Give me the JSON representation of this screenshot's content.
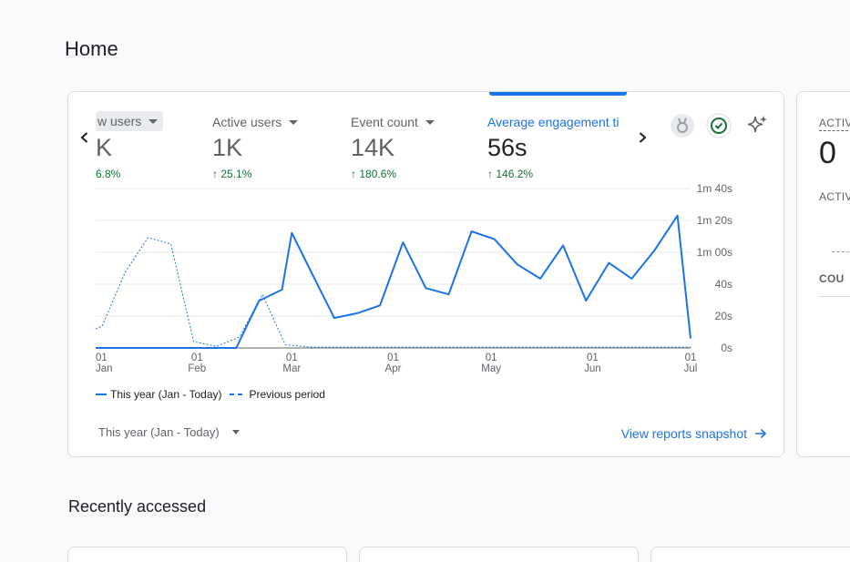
{
  "page": {
    "title": "Home"
  },
  "metrics": [
    {
      "label": "w users",
      "value": "K",
      "change": "6.8%"
    },
    {
      "label": "Active users",
      "value": "1K",
      "change": "25.1%"
    },
    {
      "label": "Event count",
      "value": "14K",
      "change": "180.6%"
    },
    {
      "label": "Average engagement ti",
      "value": "56s",
      "change": "146.2%"
    }
  ],
  "change_arrow": "↑",
  "chart_data": {
    "type": "line",
    "x_ticks": [
      {
        "day": "01",
        "month": "Jan"
      },
      {
        "day": "01",
        "month": "Feb"
      },
      {
        "day": "01",
        "month": "Mar"
      },
      {
        "day": "01",
        "month": "Apr"
      },
      {
        "day": "01",
        "month": "May"
      },
      {
        "day": "01",
        "month": "Jun"
      },
      {
        "day": "01",
        "month": "Jul"
      }
    ],
    "y_ticks": [
      "1m 40s",
      "1m 20s",
      "1m 00s",
      "40s",
      "20s",
      "0s"
    ],
    "ylim_seconds": [
      0,
      100
    ],
    "series": [
      {
        "name": "This year (Jan - Today)",
        "style": "solid",
        "points": [
          [
            "2024-01-01",
            0
          ],
          [
            "2024-01-15",
            0
          ],
          [
            "2024-02-01",
            0
          ],
          [
            "2024-02-13",
            0
          ],
          [
            "2024-02-20",
            30
          ],
          [
            "2024-02-27",
            37
          ],
          [
            "2024-03-01",
            73
          ],
          [
            "2024-03-07",
            48
          ],
          [
            "2024-03-14",
            19
          ],
          [
            "2024-03-21",
            22
          ],
          [
            "2024-03-28",
            27
          ],
          [
            "2024-04-04",
            67
          ],
          [
            "2024-04-11",
            38
          ],
          [
            "2024-04-18",
            34
          ],
          [
            "2024-04-25",
            74
          ],
          [
            "2024-05-02",
            69
          ],
          [
            "2024-05-09",
            53
          ],
          [
            "2024-05-16",
            44
          ],
          [
            "2024-05-23",
            65
          ],
          [
            "2024-05-30",
            30
          ],
          [
            "2024-06-06",
            54
          ],
          [
            "2024-06-13",
            44
          ],
          [
            "2024-06-20",
            62
          ],
          [
            "2024-06-27",
            84
          ],
          [
            "2024-07-01",
            6
          ]
        ]
      },
      {
        "name": "Previous period",
        "style": "dashed",
        "points": [
          [
            "2024-01-01",
            12
          ],
          [
            "2024-01-03",
            14
          ],
          [
            "2024-01-10",
            48
          ],
          [
            "2024-01-17",
            70
          ],
          [
            "2024-01-24",
            66
          ],
          [
            "2024-01-31",
            4
          ],
          [
            "2024-02-07",
            1
          ],
          [
            "2024-02-14",
            7
          ],
          [
            "2024-02-21",
            34
          ],
          [
            "2024-02-28",
            2
          ],
          [
            "2024-03-07",
            0.5
          ],
          [
            "2024-07-01",
            0.5
          ]
        ]
      }
    ]
  },
  "legend": {
    "current": "This year (Jan - Today)",
    "previous": "Previous period"
  },
  "footer": {
    "date_range": "This year (Jan - Today)",
    "snapshot_link": "View reports snapshot"
  },
  "side_card": {
    "label1": "ACTIV",
    "value": "0",
    "label2": "ACTIV",
    "label3": "COU"
  },
  "recent": {
    "title": "Recently accessed"
  },
  "colors": {
    "accent": "#1a73e8",
    "positive": "#137333"
  },
  "icons": [
    "chevron-left-icon",
    "chevron-right-icon",
    "insights-badge-icon",
    "check-circle-icon",
    "sparkle-icon",
    "arrow-right-icon"
  ]
}
